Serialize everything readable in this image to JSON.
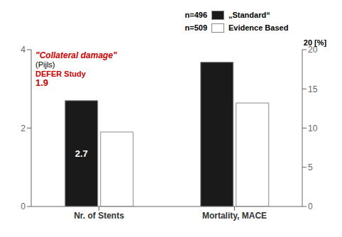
{
  "chart_data": {
    "type": "bar",
    "categories": [
      "Nr. of Stents",
      "Mortality, MACE"
    ],
    "series": [
      {
        "name": "„Standard“",
        "color": "#1a1a1a",
        "values": [
          2.7,
          null
        ],
        "data_labels": true
      },
      {
        "name": "Evidence Based",
        "color": "#ffffff",
        "values": [
          1.9,
          null
        ]
      },
      {
        "name": "„Standard“",
        "color": "#1a1a1a",
        "values": [
          null,
          18.4
        ],
        "axis": "y2"
      },
      {
        "name": "Evidence Based",
        "color": "#ffffff",
        "values": [
          null,
          13.2
        ],
        "axis": "y2"
      }
    ],
    "ylim": [
      0,
      4
    ],
    "yticks": [
      0,
      2,
      4
    ],
    "y2lim": [
      0,
      20
    ],
    "y2ticks": [
      0,
      5,
      10,
      15,
      20
    ],
    "y2label": "20 [%]",
    "annotations": [
      {
        "text": "\"Collateral damage\"",
        "color": "#cc0000"
      },
      {
        "text": "(Pijls)"
      },
      {
        "text": "DEFER Study",
        "color": "#cc0000"
      },
      {
        "text": "1.9",
        "color": "#cc0000"
      },
      {
        "text": "n=496"
      },
      {
        "text": "n=509"
      }
    ],
    "legend": "top right",
    "grid": false
  }
}
